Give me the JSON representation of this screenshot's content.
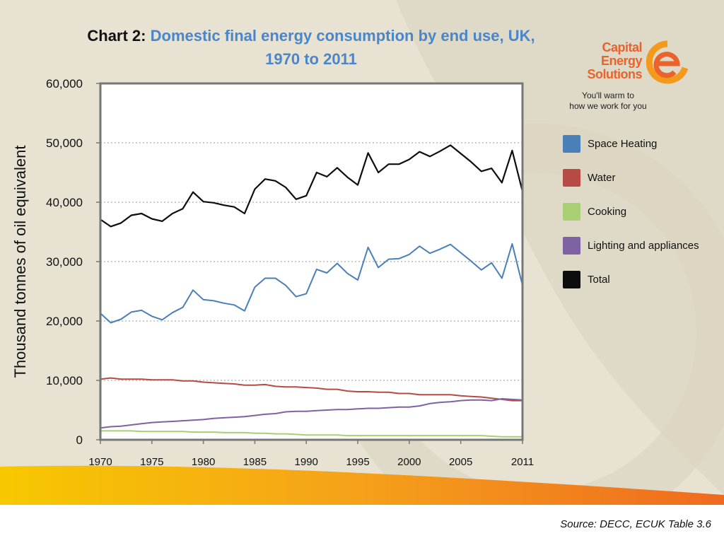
{
  "title": {
    "prefix": "Chart 2:",
    "main": "Domestic final energy consumption by end use, UK,",
    "line2": "1970 to 2011"
  },
  "logo": {
    "brand_line1": "Capital",
    "brand_line2": "Energy",
    "brand_line3": "Solutions",
    "tagline_line1": "You'll warm to",
    "tagline_line2": "how we work for you",
    "accent": "#e9632a"
  },
  "source": "Source: DECC, ECUK Table 3.6",
  "chart_data": {
    "type": "line",
    "ylabel": "Thousand tonnes of oil equivalent",
    "xlabel": "",
    "xlim": [
      1970,
      2011
    ],
    "ylim": [
      0,
      60000
    ],
    "x_ticks": [
      "1970",
      "1975",
      "1980",
      "1985",
      "1990",
      "1995",
      "2000",
      "2005",
      "2011"
    ],
    "x_tick_values": [
      1970,
      1975,
      1980,
      1985,
      1990,
      1995,
      2000,
      2005,
      2011
    ],
    "y_ticks": [
      "0",
      "10,000",
      "20,000",
      "30,000",
      "40,000",
      "50,000",
      "60,000"
    ],
    "y_tick_values": [
      0,
      10000,
      20000,
      30000,
      40000,
      50000,
      60000
    ],
    "grid": "horizontal-dotted",
    "legend_position": "right",
    "x": [
      1970,
      1971,
      1972,
      1973,
      1974,
      1975,
      1976,
      1977,
      1978,
      1979,
      1980,
      1981,
      1982,
      1983,
      1984,
      1985,
      1986,
      1987,
      1988,
      1989,
      1990,
      1991,
      1992,
      1993,
      1994,
      1995,
      1996,
      1997,
      1998,
      1999,
      2000,
      2001,
      2002,
      2003,
      2004,
      2005,
      2006,
      2007,
      2008,
      2009,
      2010,
      2011
    ],
    "series": [
      {
        "name": "Space Heating",
        "color": "#4a7fb8",
        "values": [
          21300,
          19700,
          20300,
          21500,
          21800,
          20800,
          20200,
          21400,
          22300,
          25200,
          23600,
          23400,
          23000,
          22700,
          21700,
          25700,
          27200,
          27200,
          26000,
          24100,
          24600,
          28700,
          28100,
          29700,
          28000,
          26900,
          32400,
          29000,
          30400,
          30500,
          31200,
          32600,
          31400,
          32100,
          32900,
          31500,
          30100,
          28600,
          29800,
          27200,
          33000,
          26000
        ]
      },
      {
        "name": "Water",
        "color": "#b74a44",
        "values": [
          10200,
          10400,
          10200,
          10200,
          10200,
          10100,
          10100,
          10100,
          9900,
          9900,
          9700,
          9600,
          9500,
          9400,
          9200,
          9200,
          9300,
          9000,
          8900,
          8900,
          8800,
          8700,
          8500,
          8500,
          8200,
          8100,
          8100,
          8000,
          8000,
          7800,
          7800,
          7600,
          7600,
          7600,
          7600,
          7400,
          7300,
          7200,
          7000,
          6800,
          6600,
          6600
        ]
      },
      {
        "name": "Cooking",
        "color": "#a9cf74",
        "values": [
          1500,
          1500,
          1500,
          1500,
          1400,
          1400,
          1400,
          1400,
          1400,
          1300,
          1300,
          1300,
          1200,
          1200,
          1200,
          1100,
          1100,
          1000,
          1000,
          900,
          800,
          800,
          800,
          800,
          700,
          700,
          700,
          700,
          700,
          700,
          700,
          700,
          700,
          700,
          700,
          700,
          700,
          700,
          600,
          500,
          500,
          500
        ]
      },
      {
        "name": "Lighting and appliances",
        "color": "#7e62a4",
        "values": [
          2000,
          2200,
          2300,
          2500,
          2700,
          2900,
          3000,
          3100,
          3200,
          3300,
          3400,
          3600,
          3700,
          3800,
          3900,
          4100,
          4300,
          4400,
          4700,
          4800,
          4800,
          4900,
          5000,
          5100,
          5100,
          5200,
          5300,
          5300,
          5400,
          5500,
          5500,
          5700,
          6100,
          6300,
          6400,
          6600,
          6700,
          6700,
          6600,
          6900,
          6800,
          6700
        ]
      },
      {
        "name": "Total",
        "color": "#0d0d0d",
        "values": [
          37100,
          35900,
          36500,
          37800,
          38100,
          37200,
          36800,
          38100,
          38900,
          41700,
          40100,
          39900,
          39500,
          39200,
          38100,
          42200,
          43900,
          43600,
          42500,
          40500,
          41100,
          45000,
          44300,
          45800,
          44200,
          42900,
          48300,
          45000,
          46400,
          46400,
          47200,
          48500,
          47700,
          48600,
          49600,
          48200,
          46800,
          45200,
          45700,
          43300,
          48700,
          41800
        ]
      }
    ]
  }
}
